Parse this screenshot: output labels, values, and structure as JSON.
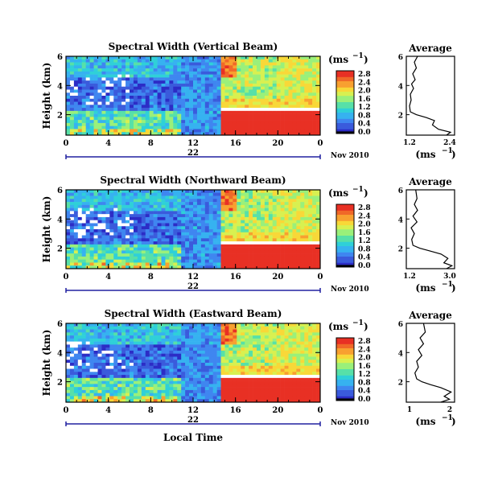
{
  "colors": {
    "colormap": [
      "#2c2cc6",
      "#3a5bdc",
      "#3f86f0",
      "#36b2f0",
      "#2fd0d8",
      "#57e0a8",
      "#9af07a",
      "#d8f050",
      "#f8d838",
      "#f8a030",
      "#f06828",
      "#e83024"
    ],
    "axis": "#000000",
    "date_bar": "#2020a0"
  },
  "common": {
    "unit_label": "(ms",
    "unit_exp": "−1",
    "ylabel": "Height (km)",
    "date_label": "Nov 2010",
    "day_label": "22",
    "avg_title": "Average",
    "avg_xlabel": "(ms",
    "avg_xlabel_exp": "−1",
    "avg_xlabel_close": ")",
    "xaxis_title": "Local Time"
  },
  "chart_data": [
    {
      "type": "heatmap",
      "title": "Spectral Width (Vertical Beam)",
      "ylabel": "Height (km)",
      "x_range": [
        0,
        24
      ],
      "x_ticks": [
        "0",
        "4",
        "8",
        "12",
        "16",
        "20",
        "0"
      ],
      "y_range": [
        0.6,
        6
      ],
      "y_ticks": [
        "2",
        "4",
        "6"
      ],
      "colorbar": {
        "min": 0.0,
        "max": 2.8,
        "ticks": [
          "2.8",
          "2.4",
          "2.0",
          "1.6",
          "1.2",
          "0.8",
          "0.4",
          "0.0"
        ]
      },
      "average": {
        "title": "Average",
        "xlim": [
          1.2,
          2.4
        ],
        "xticks": [
          "1.2",
          "2.4"
        ],
        "profile": [
          [
            2.2,
            0.6
          ],
          [
            2.3,
            0.8
          ],
          [
            2.0,
            1.0
          ],
          [
            1.85,
            1.3
          ],
          [
            1.9,
            1.6
          ],
          [
            1.7,
            1.8
          ],
          [
            1.45,
            2.0
          ],
          [
            1.3,
            2.2
          ],
          [
            1.28,
            2.6
          ],
          [
            1.32,
            3.0
          ],
          [
            1.3,
            3.4
          ],
          [
            1.38,
            3.8
          ],
          [
            1.33,
            4.1
          ],
          [
            1.42,
            4.4
          ],
          [
            1.36,
            4.8
          ],
          [
            1.45,
            5.2
          ],
          [
            1.4,
            5.6
          ],
          [
            1.48,
            6.0
          ]
        ]
      }
    },
    {
      "type": "heatmap",
      "title": "Spectral Width (Northward Beam)",
      "ylabel": "Height (km)",
      "x_range": [
        0,
        24
      ],
      "x_ticks": [
        "0",
        "4",
        "8",
        "12",
        "16",
        "20",
        "0"
      ],
      "y_range": [
        0.6,
        6
      ],
      "y_ticks": [
        "2",
        "4",
        "6"
      ],
      "colorbar": {
        "min": 0.0,
        "max": 2.8,
        "ticks": [
          "2.8",
          "2.4",
          "2.0",
          "1.6",
          "1.2",
          "0.8",
          "0.4",
          "0.0"
        ]
      },
      "average": {
        "title": "Average",
        "xlim": [
          1.2,
          3.0
        ],
        "xticks": [
          "1.2",
          "3.0"
        ],
        "profile": [
          [
            2.7,
            0.6
          ],
          [
            2.9,
            0.8
          ],
          [
            2.6,
            1.0
          ],
          [
            2.75,
            1.3
          ],
          [
            2.5,
            1.6
          ],
          [
            2.1,
            1.8
          ],
          [
            1.7,
            2.0
          ],
          [
            1.45,
            2.2
          ],
          [
            1.4,
            2.6
          ],
          [
            1.5,
            3.0
          ],
          [
            1.38,
            3.4
          ],
          [
            1.6,
            3.8
          ],
          [
            1.45,
            4.2
          ],
          [
            1.62,
            4.6
          ],
          [
            1.5,
            5.0
          ],
          [
            1.6,
            5.4
          ],
          [
            1.55,
            6.0
          ]
        ]
      }
    },
    {
      "type": "heatmap",
      "title": "Spectral Width (Eastward Beam)",
      "ylabel": "Height (km)",
      "x_range": [
        0,
        24
      ],
      "x_ticks": [
        "0",
        "4",
        "8",
        "12",
        "16",
        "20",
        "0"
      ],
      "y_range": [
        0.6,
        6
      ],
      "y_ticks": [
        "2",
        "4",
        "6"
      ],
      "colorbar": {
        "min": 0.0,
        "max": 2.8,
        "ticks": [
          "2.8",
          "2.4",
          "2.0",
          "1.6",
          "1.2",
          "0.8",
          "0.4",
          "0.0"
        ]
      },
      "average": {
        "title": "Average",
        "xlim": [
          0.9,
          2.3
        ],
        "xticks": [
          "1",
          "2"
        ],
        "profile": [
          [
            1.9,
            0.6
          ],
          [
            2.15,
            0.8
          ],
          [
            2.0,
            1.0
          ],
          [
            2.2,
            1.3
          ],
          [
            1.9,
            1.6
          ],
          [
            1.6,
            1.8
          ],
          [
            1.35,
            2.0
          ],
          [
            1.2,
            2.2
          ],
          [
            1.15,
            2.6
          ],
          [
            1.25,
            3.0
          ],
          [
            1.2,
            3.4
          ],
          [
            1.35,
            3.8
          ],
          [
            1.25,
            4.2
          ],
          [
            1.4,
            4.6
          ],
          [
            1.3,
            5.0
          ],
          [
            1.45,
            5.4
          ],
          [
            1.4,
            6.0
          ]
        ]
      }
    }
  ]
}
